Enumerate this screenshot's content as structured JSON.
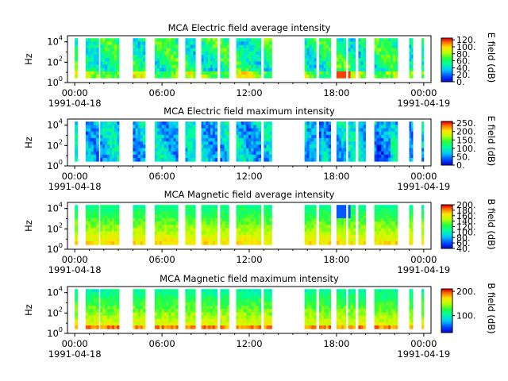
{
  "figure": {
    "panels": [
      {
        "title": "MCA  Electric field average intensity",
        "ylabel": "Hz",
        "cbar_label": "E field (dB)",
        "cbar_ticks": [
          "0.",
          "20.",
          "40.",
          "60.",
          "80.",
          "100.",
          "120."
        ],
        "cbar_range": [
          0,
          125
        ],
        "style": "eavg"
      },
      {
        "title": "MCA  Electric field maximum intensity",
        "ylabel": "Hz",
        "cbar_label": "E field (dB)",
        "cbar_ticks": [
          "0.",
          "50.",
          "100.",
          "150.",
          "200.",
          "250."
        ],
        "cbar_range": [
          0,
          260
        ],
        "style": "emax"
      },
      {
        "title": "MCA  Magnetic field average intensity",
        "ylabel": "Hz",
        "cbar_label": "B field (dB)",
        "cbar_ticks": [
          "40.",
          "60.",
          "80.",
          "100.",
          "120.",
          "140.",
          "160.",
          "180.",
          "200."
        ],
        "cbar_range": [
          40,
          200
        ],
        "style": "bavg"
      },
      {
        "title": "MCA  Magnetic field maximum intensity",
        "ylabel": "Hz",
        "cbar_label": "B field (dB)",
        "cbar_ticks": [
          "100.",
          "200."
        ],
        "cbar_range": [
          30,
          210
        ],
        "style": "bmax"
      }
    ],
    "x_ticks": [
      {
        "time": "00:00",
        "date": "1991-04-18"
      },
      {
        "time": "06:00",
        "date": ""
      },
      {
        "time": "12:00",
        "date": ""
      },
      {
        "time": "18:00",
        "date": ""
      },
      {
        "time": "00:00",
        "date": "1991-04-19"
      }
    ],
    "y_ticks": [
      {
        "base": "10",
        "exp": "0"
      },
      {
        "base": "10",
        "exp": "2"
      },
      {
        "base": "10",
        "exp": "4"
      }
    ]
  },
  "chart_data": {
    "type": "heatmap",
    "x_range_hours": [
      -0.5,
      24.5
    ],
    "y_range_log10_hz": [
      0,
      4.6
    ],
    "colormap": "rainbow (blue to red)",
    "data_intervals_hours": [
      [
        0.0,
        0.2
      ],
      [
        0.75,
        1.65
      ],
      [
        1.75,
        3.05
      ],
      [
        4.0,
        4.85
      ],
      [
        5.5,
        7.1
      ],
      [
        7.6,
        8.3
      ],
      [
        8.7,
        9.8
      ],
      [
        10.0,
        10.6
      ],
      [
        11.1,
        12.8
      ],
      [
        13.0,
        13.55
      ],
      [
        15.8,
        16.6
      ],
      [
        16.8,
        17.6
      ],
      [
        18.0,
        18.65
      ],
      [
        18.8,
        19.3
      ],
      [
        19.5,
        20.0
      ],
      [
        20.6,
        22.2
      ],
      [
        23.0,
        23.25
      ],
      [
        23.85,
        24.0
      ]
    ],
    "panels": [
      {
        "name": "MCA  Electric field average intensity",
        "unit": "E field (dB)",
        "range": [
          0,
          125
        ]
      },
      {
        "name": "MCA  Electric field maximum intensity",
        "unit": "E field (dB)",
        "range": [
          0,
          260
        ]
      },
      {
        "name": "MCA  Magnetic field average intensity",
        "unit": "B field (dB)",
        "range": [
          40,
          200
        ]
      },
      {
        "name": "MCA  Magnetic field maximum intensity",
        "unit": "B field (dB)",
        "range": [
          30,
          210
        ]
      }
    ]
  }
}
